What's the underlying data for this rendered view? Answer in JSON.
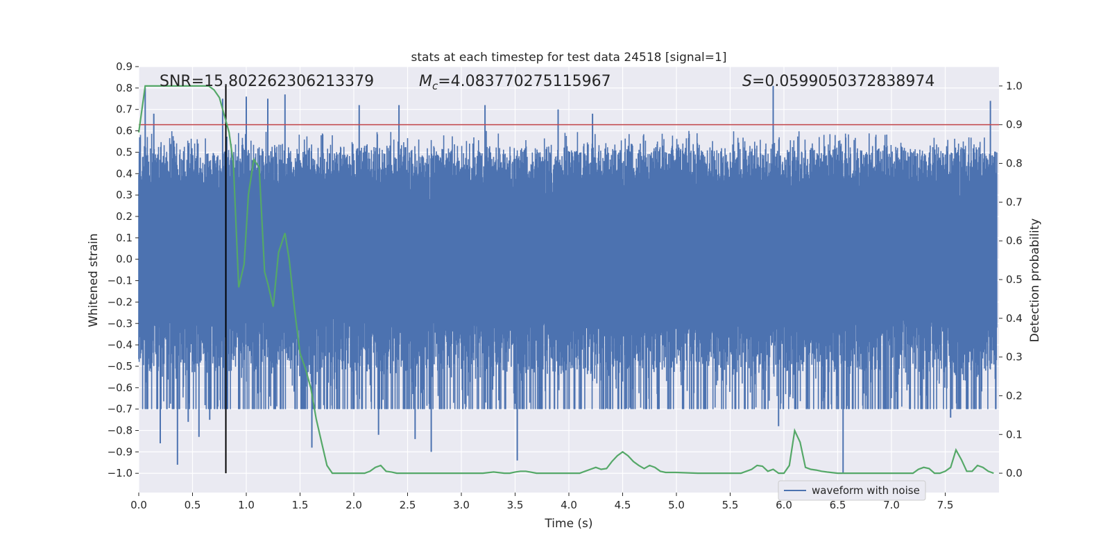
{
  "chart_data": {
    "type": "line",
    "title": "stats at each timestep for test data 24518 [signal=1]",
    "xlabel": "Time (s)",
    "ylabel_left": "Whitened strain",
    "ylabel_right": "Detection probability",
    "xlim": [
      0.0,
      8.0
    ],
    "ylim_left": [
      -1.09,
      0.9
    ],
    "ylim_right": [
      -0.05,
      1.05
    ],
    "x_ticks": [
      "0.0",
      "0.5",
      "1.0",
      "1.5",
      "2.0",
      "2.5",
      "3.0",
      "3.5",
      "4.0",
      "4.5",
      "5.0",
      "5.5",
      "6.0",
      "6.5",
      "7.0",
      "7.5"
    ],
    "x_tick_values": [
      0.0,
      0.5,
      1.0,
      1.5,
      2.0,
      2.5,
      3.0,
      3.5,
      4.0,
      4.5,
      5.0,
      5.5,
      6.0,
      6.5,
      7.0,
      7.5
    ],
    "y_left_ticks": [
      "0.9",
      "0.8",
      "0.7",
      "0.6",
      "0.5",
      "0.4",
      "0.3",
      "0.2",
      "0.1",
      "0.0",
      "−0.1",
      "−0.2",
      "−0.3",
      "−0.4",
      "−0.5",
      "−0.6",
      "−0.7",
      "−0.8",
      "−0.9",
      "−1.0"
    ],
    "y_left_tick_values": [
      0.9,
      0.8,
      0.7,
      0.6,
      0.5,
      0.4,
      0.3,
      0.2,
      0.1,
      0.0,
      -0.1,
      -0.2,
      -0.3,
      -0.4,
      -0.5,
      -0.6,
      -0.7,
      -0.8,
      -0.9,
      -1.0
    ],
    "y_right_ticks": [
      "1.0",
      "0.9",
      "0.8",
      "0.7",
      "0.6",
      "0.5",
      "0.4",
      "0.3",
      "0.2",
      "0.1",
      "0.0"
    ],
    "y_right_tick_values": [
      1.0,
      0.9,
      0.8,
      0.7,
      0.6,
      0.5,
      0.4,
      0.3,
      0.2,
      0.1,
      0.0
    ],
    "grid": true,
    "annotations": {
      "snr": "SNR=15.802262306213379",
      "mc_symbol": "M",
      "mc_subscript": "c",
      "mc_value": "=4.083770275115967",
      "s_symbol": "S",
      "s_value": "=0.0599050372838974"
    },
    "threshold": {
      "value": 0.9,
      "axis": "right",
      "color": "#c44e52"
    },
    "merger_time": 0.81,
    "legend": {
      "placement": "lower-right",
      "entries": [
        "waveform with noise"
      ]
    },
    "series": [
      {
        "name": "waveform with noise",
        "axis": "left",
        "color": "#4c72b0",
        "noise_amplitude": 0.28,
        "extreme_spikes": [
          {
            "x": 0.06,
            "y": 0.8
          },
          {
            "x": 0.14,
            "y": 0.68
          },
          {
            "x": 0.2,
            "y": -0.86
          },
          {
            "x": 0.36,
            "y": -0.96
          },
          {
            "x": 0.46,
            "y": -0.76
          },
          {
            "x": 0.56,
            "y": -0.83
          },
          {
            "x": 0.66,
            "y": -0.75
          },
          {
            "x": 0.78,
            "y": 0.75
          },
          {
            "x": 1.0,
            "y": 0.76
          },
          {
            "x": 1.2,
            "y": 0.75
          },
          {
            "x": 1.36,
            "y": 0.77
          },
          {
            "x": 1.61,
            "y": -0.88
          },
          {
            "x": 2.05,
            "y": 0.72
          },
          {
            "x": 2.23,
            "y": -0.82
          },
          {
            "x": 2.42,
            "y": 0.72
          },
          {
            "x": 2.57,
            "y": -0.84
          },
          {
            "x": 2.72,
            "y": -0.9
          },
          {
            "x": 3.22,
            "y": 0.72
          },
          {
            "x": 3.52,
            "y": -0.94
          },
          {
            "x": 3.9,
            "y": 0.7
          },
          {
            "x": 4.22,
            "y": 0.68
          },
          {
            "x": 5.9,
            "y": 0.81
          },
          {
            "x": 5.95,
            "y": -0.78
          },
          {
            "x": 6.55,
            "y": -1.0
          },
          {
            "x": 7.55,
            "y": -0.74
          },
          {
            "x": 7.92,
            "y": 0.74
          }
        ]
      },
      {
        "name": "",
        "axis": "right",
        "color": "#55a868",
        "x": [
          0.0,
          0.06,
          0.1,
          0.2,
          0.3,
          0.4,
          0.5,
          0.6,
          0.65,
          0.7,
          0.75,
          0.8,
          0.84,
          0.88,
          0.93,
          0.98,
          1.02,
          1.07,
          1.12,
          1.17,
          1.2,
          1.25,
          1.3,
          1.36,
          1.4,
          1.45,
          1.5,
          1.55,
          1.6,
          1.65,
          1.7,
          1.75,
          1.8,
          1.85,
          1.9,
          1.95,
          2.0,
          2.1,
          2.15,
          2.2,
          2.25,
          2.3,
          2.35,
          2.4,
          2.5,
          2.6,
          2.8,
          3.0,
          3.1,
          3.2,
          3.3,
          3.4,
          3.45,
          3.5,
          3.55,
          3.6,
          3.7,
          3.8,
          3.9,
          4.0,
          4.1,
          4.15,
          4.2,
          4.25,
          4.3,
          4.35,
          4.4,
          4.45,
          4.5,
          4.55,
          4.6,
          4.65,
          4.7,
          4.75,
          4.8,
          4.85,
          4.9,
          5.0,
          5.2,
          5.4,
          5.6,
          5.65,
          5.7,
          5.75,
          5.8,
          5.85,
          5.9,
          5.95,
          6.0,
          6.05,
          6.1,
          6.15,
          6.2,
          6.25,
          6.3,
          6.35,
          6.4,
          6.5,
          6.6,
          6.8,
          7.0,
          7.1,
          7.2,
          7.25,
          7.3,
          7.35,
          7.4,
          7.45,
          7.5,
          7.55,
          7.6,
          7.65,
          7.7,
          7.75,
          7.8,
          7.85,
          7.9,
          7.95
        ],
        "y": [
          0.88,
          1.0,
          1.0,
          1.0,
          1.0,
          1.0,
          1.0,
          1.0,
          1.0,
          0.99,
          0.97,
          0.92,
          0.88,
          0.8,
          0.48,
          0.54,
          0.72,
          0.81,
          0.79,
          0.52,
          0.49,
          0.43,
          0.57,
          0.62,
          0.55,
          0.42,
          0.31,
          0.27,
          0.22,
          0.14,
          0.08,
          0.02,
          0.0,
          0.0,
          0.0,
          0.0,
          0.0,
          0.0,
          0.005,
          0.015,
          0.02,
          0.005,
          0.003,
          0.0,
          0.0,
          0.0,
          0.0,
          0.0,
          0.0,
          0.0,
          0.003,
          0.0,
          0.0,
          0.003,
          0.005,
          0.005,
          0.0,
          0.0,
          0.0,
          0.0,
          0.0,
          0.005,
          0.01,
          0.015,
          0.01,
          0.012,
          0.03,
          0.045,
          0.055,
          0.045,
          0.03,
          0.02,
          0.012,
          0.02,
          0.015,
          0.005,
          0.002,
          0.002,
          0.0,
          0.0,
          0.0,
          0.005,
          0.01,
          0.02,
          0.018,
          0.005,
          0.01,
          0.0,
          0.0,
          0.02,
          0.11,
          0.08,
          0.015,
          0.01,
          0.008,
          0.005,
          0.003,
          0.0,
          0.0,
          0.0,
          0.0,
          0.0,
          0.0,
          0.01,
          0.015,
          0.012,
          0.0,
          0.0,
          0.005,
          0.015,
          0.06,
          0.035,
          0.005,
          0.005,
          0.02,
          0.015,
          0.005,
          0.0
        ]
      }
    ]
  }
}
